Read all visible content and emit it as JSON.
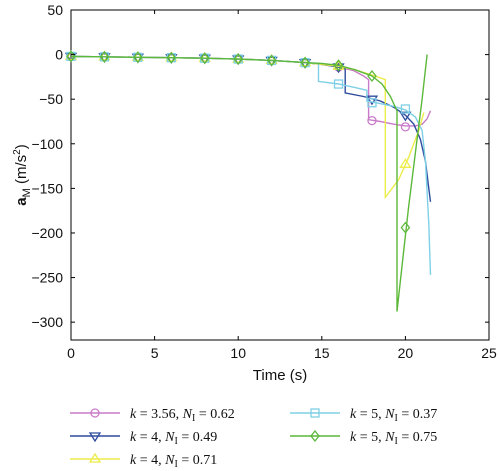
{
  "chart_data": {
    "type": "line",
    "xlabel": "Time (s)",
    "ylabel": {
      "main": "a",
      "sub": "M",
      "unit": " (m/s",
      "sup": "2",
      "close": ")"
    },
    "xlim": [
      0,
      25
    ],
    "ylim": [
      -320,
      50
    ],
    "xticks": [
      0,
      5,
      10,
      15,
      20,
      25
    ],
    "yticks": [
      50,
      0,
      -50,
      -100,
      -150,
      -200,
      -250,
      -300
    ],
    "grid": false,
    "legend_position": "bottom",
    "series": [
      {
        "name": "k = 3.56, N_I = 0.62",
        "legend": {
          "k": "k",
          "kval": " = 3.56, ",
          "n": "N",
          "nsub": "I",
          "nval": " = 0.62"
        },
        "color": "#c97bc9",
        "marker": "circle",
        "x": [
          0,
          2,
          4,
          6,
          8,
          10,
          12,
          14,
          15,
          16,
          16.9,
          17.5,
          17.8,
          17.8,
          18.5,
          19.3,
          20,
          20.6,
          21,
          21.3,
          21.5
        ],
        "y": [
          -2,
          -2.5,
          -3,
          -3.5,
          -4,
          -5,
          -6.5,
          -9,
          -11,
          -14,
          -18,
          -24,
          -28,
          -73,
          -75,
          -78,
          -80,
          -80,
          -78,
          -72,
          -63
        ],
        "markers_x": [
          0,
          2,
          4,
          6,
          8,
          10,
          12,
          14,
          16,
          18,
          20
        ],
        "markers_y": [
          -2,
          -2.5,
          -3,
          -3.5,
          -4,
          -5,
          -6.5,
          -9,
          -14,
          -74,
          -81
        ]
      },
      {
        "name": "k = 4, N_I = 0.49",
        "legend": {
          "k": "k",
          "kval": " = 4, ",
          "n": "N",
          "nsub": "I",
          "nval": " = 0.49"
        },
        "color": "#2e4c9e",
        "marker": "triangle-down",
        "x": [
          0,
          2,
          4,
          6,
          8,
          10,
          12,
          14,
          15,
          16,
          16.4,
          16.4,
          17.5,
          18.5,
          19.3,
          20,
          20.5,
          20.9,
          21.2,
          21.4,
          21.5
        ],
        "y": [
          -2,
          -2.5,
          -3,
          -3.5,
          -4,
          -5,
          -6.5,
          -9,
          -11,
          -14,
          -16,
          -43,
          -47,
          -52,
          -59,
          -68,
          -78,
          -95,
          -120,
          -150,
          -165
        ],
        "markers_x": [
          0,
          2,
          4,
          6,
          8,
          10,
          12,
          14,
          16,
          18,
          20
        ],
        "markers_y": [
          -2,
          -2.5,
          -3,
          -3.5,
          -4,
          -5,
          -6.5,
          -9,
          -14,
          -50,
          -68
        ]
      },
      {
        "name": "k = 4, N_I = 0.71",
        "legend": {
          "k": "k",
          "kval": " = 4, ",
          "n": "N",
          "nsub": "I",
          "nval": " = 0.71"
        },
        "color": "#ecec4a",
        "marker": "triangle-up",
        "x": [
          0,
          2,
          4,
          6,
          8,
          10,
          12,
          14,
          15,
          16,
          17,
          18,
          18.8,
          18.8,
          19.6,
          20.2,
          20.8,
          21.1
        ],
        "y": [
          -2,
          -2.5,
          -3,
          -3.5,
          -4,
          -5,
          -6.5,
          -9,
          -11,
          -13,
          -17,
          -23,
          -28,
          -160,
          -140,
          -115,
          -85,
          -65
        ],
        "markers_x": [
          0,
          2,
          4,
          6,
          8,
          10,
          12,
          14,
          16,
          20
        ],
        "markers_y": [
          -2,
          -2.5,
          -3,
          -3.5,
          -4,
          -5,
          -6.5,
          -9,
          -13,
          -123
        ]
      },
      {
        "name": "k = 5, N_I = 0.37",
        "legend": {
          "k": "k",
          "kval": " = 5, ",
          "n": "N",
          "nsub": "I",
          "nval": " = 0.37"
        },
        "color": "#7fd0e6",
        "marker": "square",
        "x": [
          0,
          2,
          4,
          6,
          8,
          10,
          12,
          14,
          14.8,
          14.8,
          16,
          17,
          17.7,
          17.7,
          18.5,
          19.3,
          20,
          20.6,
          21,
          21.2,
          21.4,
          21.5
        ],
        "y": [
          -2,
          -2.5,
          -3,
          -3.5,
          -4,
          -5,
          -6.5,
          -9,
          -10,
          -30,
          -33,
          -37,
          -40,
          -52,
          -55,
          -58,
          -62,
          -70,
          -85,
          -120,
          -190,
          -247
        ],
        "markers_x": [
          0,
          2,
          4,
          6,
          8,
          10,
          12,
          14,
          16,
          18,
          20
        ],
        "markers_y": [
          -2,
          -2.5,
          -3,
          -3.5,
          -4,
          -5,
          -6.5,
          -9,
          -33,
          -54,
          -61
        ]
      },
      {
        "name": "k = 5, N_I = 0.75",
        "legend": {
          "k": "k",
          "kval": " = 5, ",
          "n": "N",
          "nsub": "I",
          "nval": " = 0.75"
        },
        "color": "#5cb83a",
        "marker": "diamond",
        "x": [
          0,
          2,
          4,
          6,
          8,
          10,
          12,
          14,
          15,
          16,
          17,
          18,
          18.6,
          19.1,
          19.5,
          19.5,
          19.9,
          20.2,
          20.6,
          21,
          21.3
        ],
        "y": [
          -2,
          -2.5,
          -3,
          -3.5,
          -4,
          -5,
          -6.5,
          -9,
          -10,
          -12,
          -17,
          -24,
          -33,
          -47,
          -63,
          -288,
          -220,
          -170,
          -110,
          -50,
          0
        ],
        "markers_x": [
          0,
          2,
          4,
          6,
          8,
          10,
          12,
          14,
          16,
          18,
          20
        ],
        "markers_y": [
          -2,
          -2.5,
          -3,
          -3.5,
          -4,
          -5,
          -6.5,
          -9,
          -12,
          -24,
          -194
        ]
      }
    ]
  }
}
